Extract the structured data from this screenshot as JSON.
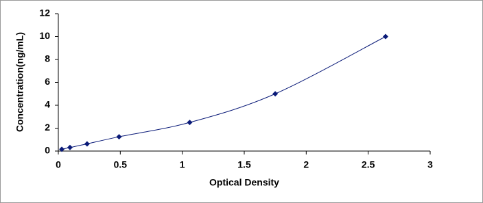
{
  "chart_data": {
    "type": "line",
    "x_label": "Optical Density",
    "y_label": "Concentration(ng/mL)",
    "x": [
      0.028,
      0.094,
      0.232,
      0.49,
      1.06,
      1.75,
      2.64
    ],
    "series": [
      {
        "color": "#0a1a78",
        "values": [
          0.156,
          0.312,
          0.625,
          1.25,
          2.5,
          5,
          10
        ]
      }
    ],
    "xlim": [
      0,
      3
    ],
    "xticks": [
      0,
      0.5,
      1,
      1.5,
      2,
      2.5,
      3
    ],
    "ylim": [
      0,
      12
    ],
    "yticks": [
      0,
      2,
      4,
      6,
      8,
      10,
      12
    ],
    "grid": false
  }
}
